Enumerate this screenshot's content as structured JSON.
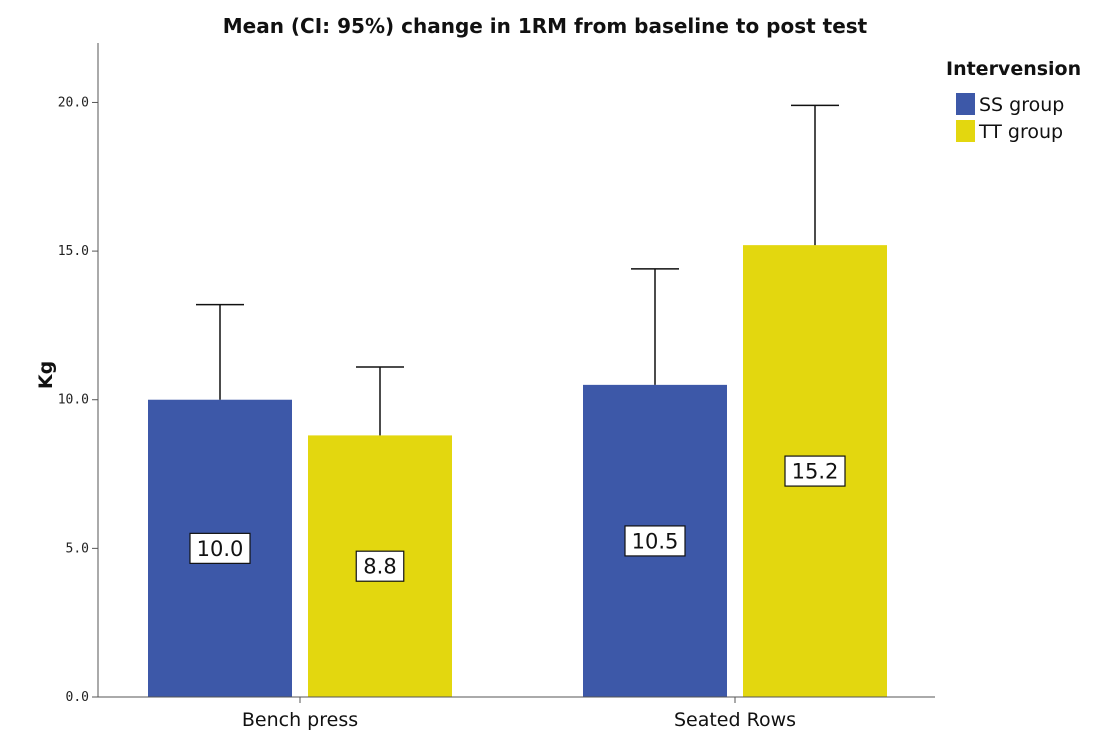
{
  "chart_data": {
    "type": "bar",
    "title": "Mean (CI: 95%) change in 1RM from baseline to post test",
    "xlabel": "",
    "ylabel": "Kg",
    "ylim": [
      0,
      22
    ],
    "yticks": [
      "0.0",
      "5.0",
      "10.0",
      "15.0",
      "20.0"
    ],
    "categories": [
      "Bench press",
      "Seated Rows"
    ],
    "legend": {
      "title": "Intervension",
      "position": "top-right"
    },
    "series": [
      {
        "name": "SS group",
        "color": "#3d58a8",
        "values": [
          10.0,
          10.5
        ],
        "labels": [
          "10.0",
          "10.5"
        ],
        "ci_upper": [
          13.2,
          14.4
        ]
      },
      {
        "name": "TT group",
        "color": "#e3d70f",
        "values": [
          8.8,
          15.2
        ],
        "labels": [
          "8.8",
          "15.2"
        ],
        "ci_upper": [
          11.1,
          19.9
        ]
      }
    ],
    "error_bars": "upper",
    "grid": false
  }
}
